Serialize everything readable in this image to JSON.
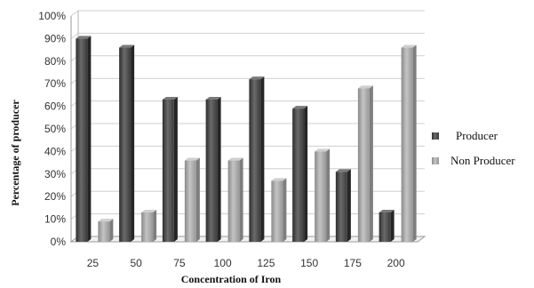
{
  "chart_data": {
    "type": "bar",
    "title": "",
    "xlabel": "Concentration of Iron",
    "ylabel": "Percentage of producer",
    "categories": [
      "25",
      "50",
      "75",
      "100",
      "125",
      "150",
      "175",
      "200"
    ],
    "series": [
      {
        "name": "Producer",
        "values": [
          90,
          86,
          63,
          63,
          72,
          59,
          31,
          13
        ],
        "color": "#505050"
      },
      {
        "name": "Non Producer",
        "values": [
          9,
          13,
          36,
          36,
          27,
          40,
          68,
          86
        ],
        "color": "#a8a8a8"
      }
    ],
    "ylim": [
      0,
      100
    ],
    "yticks": [
      "0%",
      "10%",
      "20%",
      "30%",
      "40%",
      "50%",
      "60%",
      "70%",
      "80%",
      "90%",
      "100%"
    ],
    "grid": true,
    "legend": "right"
  }
}
